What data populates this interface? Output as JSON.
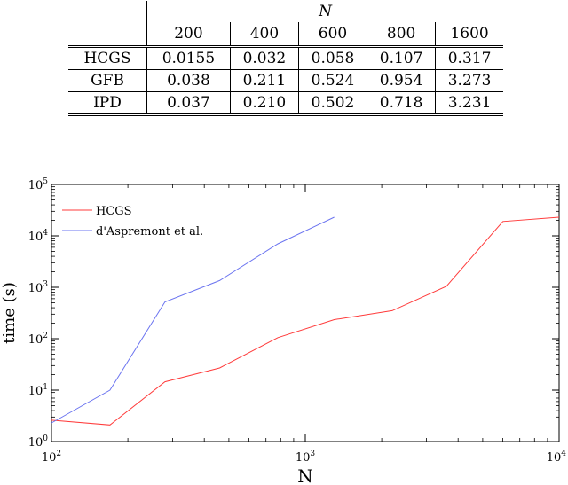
{
  "table": {
    "group_header": "N",
    "columns": [
      "200",
      "400",
      "600",
      "800",
      "1600"
    ],
    "rows": [
      {
        "label": "HCGS",
        "values": [
          "0.0155",
          "0.032",
          "0.058",
          "0.107",
          "0.317"
        ]
      },
      {
        "label": "GFB",
        "values": [
          "0.038",
          "0.211",
          "0.524",
          "0.954",
          "3.273"
        ]
      },
      {
        "label": "IPD",
        "values": [
          "0.037",
          "0.210",
          "0.502",
          "0.718",
          "3.231"
        ]
      }
    ]
  },
  "chart_data": {
    "type": "line",
    "title": "",
    "xlabel": "N",
    "ylabel": "time (s)",
    "xscale": "log",
    "yscale": "log",
    "xlim": [
      100,
      10000
    ],
    "ylim": [
      1,
      100000
    ],
    "grid": false,
    "legend_position": "top-left",
    "x_ticks": [
      {
        "value": 100,
        "base": "10",
        "exp": "2"
      },
      {
        "value": 1000,
        "base": "10",
        "exp": "3"
      },
      {
        "value": 10000,
        "base": "10",
        "exp": "4"
      }
    ],
    "y_ticks": [
      {
        "value": 1,
        "base": "10",
        "exp": "0"
      },
      {
        "value": 10,
        "base": "10",
        "exp": "1"
      },
      {
        "value": 100,
        "base": "10",
        "exp": "2"
      },
      {
        "value": 1000,
        "base": "10",
        "exp": "3"
      },
      {
        "value": 10000,
        "base": "10",
        "exp": "4"
      },
      {
        "value": 100000,
        "base": "10",
        "exp": "5"
      }
    ],
    "series": [
      {
        "name": "HCGS",
        "color": "#ff3b3b",
        "x": [
          100,
          170,
          280,
          460,
          780,
          1300,
          2200,
          3600,
          6000,
          10000
        ],
        "y": [
          2.6,
          2.1,
          14.5,
          27,
          105,
          235,
          350,
          1050,
          19000,
          23000
        ]
      },
      {
        "name": "d'Aspremont et al.",
        "color": "#6b74f0",
        "x": [
          100,
          170,
          280,
          460,
          780,
          1300
        ],
        "y": [
          2.3,
          10,
          520,
          1350,
          7000,
          23000
        ]
      }
    ]
  }
}
